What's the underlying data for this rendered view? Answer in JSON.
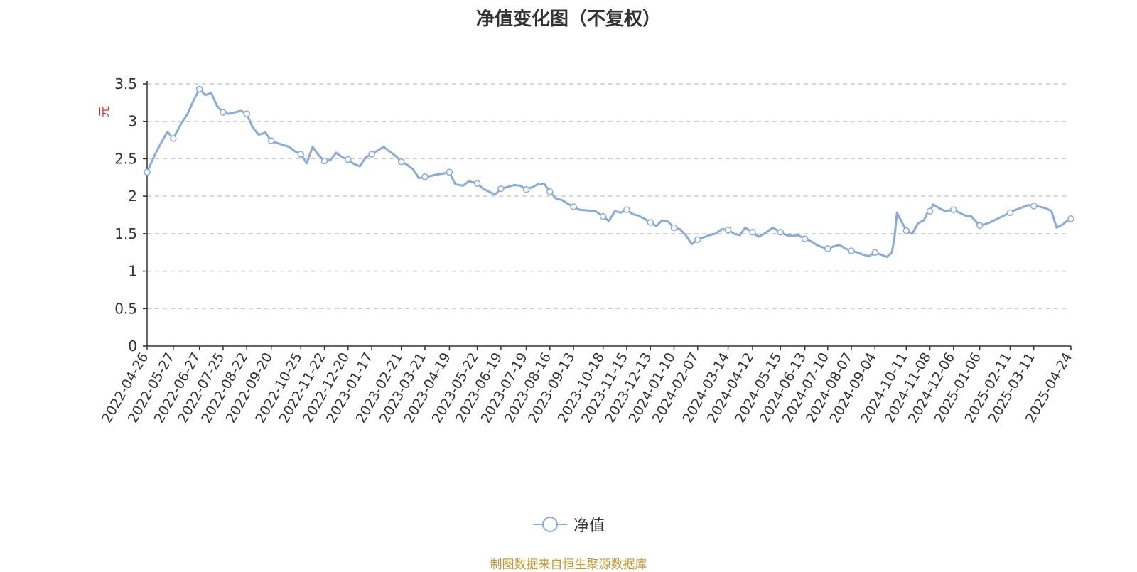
{
  "title": "净值变化图（不复权）",
  "source_note": "制图数据来自恒生聚源数据库",
  "colors": {
    "line": "#88aadd",
    "unit": "#e02020",
    "source": "#c8962a",
    "grid": "#cccccc",
    "axis": "#333333"
  },
  "chart_data": {
    "type": "line",
    "title": "净值变化图（不复权）",
    "ylabel": "元",
    "ylim": [
      0,
      3.5
    ],
    "y_ticks": [
      "0",
      "0.5",
      "1",
      "1.5",
      "2",
      "2.5",
      "3",
      "3.5"
    ],
    "grid": true,
    "legend_position": "bottom-center",
    "x_ticks": [
      "2022-04-26",
      "2022-05-27",
      "2022-06-27",
      "2022-07-25",
      "2022-08-22",
      "2022-09-20",
      "2022-10-25",
      "2022-11-22",
      "2022-12-20",
      "2023-01-17",
      "2023-02-21",
      "2023-03-21",
      "2023-04-19",
      "2023-05-22",
      "2023-06-19",
      "2023-07-19",
      "2023-08-16",
      "2023-09-13",
      "2023-10-18",
      "2023-11-15",
      "2023-12-13",
      "2024-01-10",
      "2024-02-07",
      "2024-03-14",
      "2024-04-12",
      "2024-05-15",
      "2024-06-13",
      "2024-07-10",
      "2024-08-07",
      "2024-09-04",
      "2024-10-11",
      "2024-11-08",
      "2024-12-06",
      "2025-01-06",
      "2025-02-11",
      "2025-03-11",
      "2025-04-24"
    ],
    "series": [
      {
        "name": "净值",
        "points": [
          [
            "2022-04-26",
            2.32
          ],
          [
            "2022-05-05",
            2.55
          ],
          [
            "2022-05-13",
            2.72
          ],
          [
            "2022-05-20",
            2.86
          ],
          [
            "2022-05-27",
            2.77
          ],
          [
            "2022-06-06",
            2.98
          ],
          [
            "2022-06-13",
            3.1
          ],
          [
            "2022-06-20",
            3.28
          ],
          [
            "2022-06-27",
            3.43
          ],
          [
            "2022-07-04",
            3.35
          ],
          [
            "2022-07-11",
            3.38
          ],
          [
            "2022-07-18",
            3.2
          ],
          [
            "2022-07-25",
            3.12
          ],
          [
            "2022-08-01",
            3.1
          ],
          [
            "2022-08-08",
            3.12
          ],
          [
            "2022-08-15",
            3.14
          ],
          [
            "2022-08-22",
            3.1
          ],
          [
            "2022-08-29",
            2.92
          ],
          [
            "2022-09-05",
            2.82
          ],
          [
            "2022-09-13",
            2.85
          ],
          [
            "2022-09-20",
            2.74
          ],
          [
            "2022-09-27",
            2.71
          ],
          [
            "2022-10-11",
            2.66
          ],
          [
            "2022-10-18",
            2.6
          ],
          [
            "2022-10-25",
            2.56
          ],
          [
            "2022-11-01",
            2.44
          ],
          [
            "2022-11-08",
            2.66
          ],
          [
            "2022-11-15",
            2.55
          ],
          [
            "2022-11-22",
            2.47
          ],
          [
            "2022-11-29",
            2.48
          ],
          [
            "2022-12-06",
            2.58
          ],
          [
            "2022-12-13",
            2.52
          ],
          [
            "2022-12-20",
            2.49
          ],
          [
            "2022-12-27",
            2.43
          ],
          [
            "2023-01-03",
            2.4
          ],
          [
            "2023-01-10",
            2.52
          ],
          [
            "2023-01-17",
            2.56
          ],
          [
            "2023-01-31",
            2.66
          ],
          [
            "2023-02-07",
            2.6
          ],
          [
            "2023-02-14",
            2.54
          ],
          [
            "2023-02-21",
            2.46
          ],
          [
            "2023-02-28",
            2.42
          ],
          [
            "2023-03-07",
            2.36
          ],
          [
            "2023-03-14",
            2.24
          ],
          [
            "2023-03-21",
            2.26
          ],
          [
            "2023-03-28",
            2.27
          ],
          [
            "2023-04-04",
            2.29
          ],
          [
            "2023-04-11",
            2.3
          ],
          [
            "2023-04-19",
            2.32
          ],
          [
            "2023-04-26",
            2.16
          ],
          [
            "2023-05-05",
            2.14
          ],
          [
            "2023-05-12",
            2.2
          ],
          [
            "2023-05-22",
            2.17
          ],
          [
            "2023-05-29",
            2.1
          ],
          [
            "2023-06-05",
            2.06
          ],
          [
            "2023-06-12",
            2.02
          ],
          [
            "2023-06-19",
            2.1
          ],
          [
            "2023-06-26",
            2.12
          ],
          [
            "2023-07-05",
            2.15
          ],
          [
            "2023-07-12",
            2.14
          ],
          [
            "2023-07-19",
            2.09
          ],
          [
            "2023-07-26",
            2.12
          ],
          [
            "2023-08-02",
            2.16
          ],
          [
            "2023-08-09",
            2.17
          ],
          [
            "2023-08-16",
            2.06
          ],
          [
            "2023-08-23",
            1.97
          ],
          [
            "2023-08-30",
            1.95
          ],
          [
            "2023-09-06",
            1.9
          ],
          [
            "2023-09-13",
            1.86
          ],
          [
            "2023-09-20",
            1.82
          ],
          [
            "2023-10-09",
            1.8
          ],
          [
            "2023-10-18",
            1.73
          ],
          [
            "2023-10-25",
            1.67
          ],
          [
            "2023-11-01",
            1.8
          ],
          [
            "2023-11-08",
            1.78
          ],
          [
            "2023-11-15",
            1.82
          ],
          [
            "2023-11-22",
            1.76
          ],
          [
            "2023-11-29",
            1.74
          ],
          [
            "2023-12-06",
            1.7
          ],
          [
            "2023-12-13",
            1.65
          ],
          [
            "2023-12-20",
            1.6
          ],
          [
            "2023-12-27",
            1.68
          ],
          [
            "2024-01-03",
            1.66
          ],
          [
            "2024-01-10",
            1.58
          ],
          [
            "2024-01-17",
            1.56
          ],
          [
            "2024-01-24",
            1.48
          ],
          [
            "2024-01-31",
            1.36
          ],
          [
            "2024-02-07",
            1.42
          ],
          [
            "2024-02-21",
            1.48
          ],
          [
            "2024-02-28",
            1.5
          ],
          [
            "2024-03-07",
            1.56
          ],
          [
            "2024-03-14",
            1.55
          ],
          [
            "2024-03-21",
            1.5
          ],
          [
            "2024-03-28",
            1.48
          ],
          [
            "2024-04-03",
            1.58
          ],
          [
            "2024-04-12",
            1.52
          ],
          [
            "2024-04-19",
            1.46
          ],
          [
            "2024-04-26",
            1.5
          ],
          [
            "2024-05-06",
            1.58
          ],
          [
            "2024-05-15",
            1.52
          ],
          [
            "2024-05-22",
            1.48
          ],
          [
            "2024-05-29",
            1.47
          ],
          [
            "2024-06-05",
            1.48
          ],
          [
            "2024-06-13",
            1.43
          ],
          [
            "2024-06-20",
            1.4
          ],
          [
            "2024-06-27",
            1.35
          ],
          [
            "2024-07-03",
            1.32
          ],
          [
            "2024-07-10",
            1.3
          ],
          [
            "2024-07-17",
            1.33
          ],
          [
            "2024-07-24",
            1.35
          ],
          [
            "2024-07-31",
            1.3
          ],
          [
            "2024-08-07",
            1.27
          ],
          [
            "2024-08-14",
            1.25
          ],
          [
            "2024-08-21",
            1.22
          ],
          [
            "2024-08-28",
            1.2
          ],
          [
            "2024-09-04",
            1.25
          ],
          [
            "2024-09-11",
            1.22
          ],
          [
            "2024-09-18",
            1.19
          ],
          [
            "2024-09-24",
            1.25
          ],
          [
            "2024-09-27",
            1.44
          ],
          [
            "2024-09-30",
            1.78
          ],
          [
            "2024-10-11",
            1.54
          ],
          [
            "2024-10-18",
            1.5
          ],
          [
            "2024-10-25",
            1.64
          ],
          [
            "2024-11-01",
            1.68
          ],
          [
            "2024-11-05",
            1.78
          ],
          [
            "2024-11-08",
            1.8
          ],
          [
            "2024-11-12",
            1.89
          ],
          [
            "2024-11-19",
            1.84
          ],
          [
            "2024-11-26",
            1.8
          ],
          [
            "2024-12-06",
            1.82
          ],
          [
            "2024-12-13",
            1.78
          ],
          [
            "2024-12-20",
            1.74
          ],
          [
            "2024-12-27",
            1.73
          ],
          [
            "2025-01-06",
            1.61
          ],
          [
            "2025-01-13",
            1.63
          ],
          [
            "2025-01-20",
            1.66
          ],
          [
            "2025-01-27",
            1.7
          ],
          [
            "2025-02-11",
            1.78
          ],
          [
            "2025-02-18",
            1.82
          ],
          [
            "2025-02-25",
            1.85
          ],
          [
            "2025-03-04",
            1.88
          ],
          [
            "2025-03-11",
            1.87
          ],
          [
            "2025-03-18",
            1.86
          ],
          [
            "2025-03-25",
            1.84
          ],
          [
            "2025-04-01",
            1.8
          ],
          [
            "2025-04-07",
            1.58
          ],
          [
            "2025-04-14",
            1.62
          ],
          [
            "2025-04-18",
            1.66
          ],
          [
            "2025-04-24",
            1.7
          ]
        ],
        "markers": [
          "2022-04-26",
          "2022-05-27",
          "2022-06-27",
          "2022-07-25",
          "2022-08-22",
          "2022-09-20",
          "2022-10-25",
          "2022-11-22",
          "2022-12-20",
          "2023-01-17",
          "2023-02-21",
          "2023-03-21",
          "2023-04-19",
          "2023-05-22",
          "2023-06-19",
          "2023-07-19",
          "2023-08-16",
          "2023-09-13",
          "2023-10-18",
          "2023-11-15",
          "2023-12-13",
          "2024-01-10",
          "2024-02-07",
          "2024-03-14",
          "2024-04-12",
          "2024-05-15",
          "2024-06-13",
          "2024-07-10",
          "2024-08-07",
          "2024-09-04",
          "2024-10-11",
          "2024-11-08",
          "2024-12-06",
          "2025-01-06",
          "2025-02-11",
          "2025-03-11",
          "2025-04-24"
        ]
      }
    ]
  }
}
